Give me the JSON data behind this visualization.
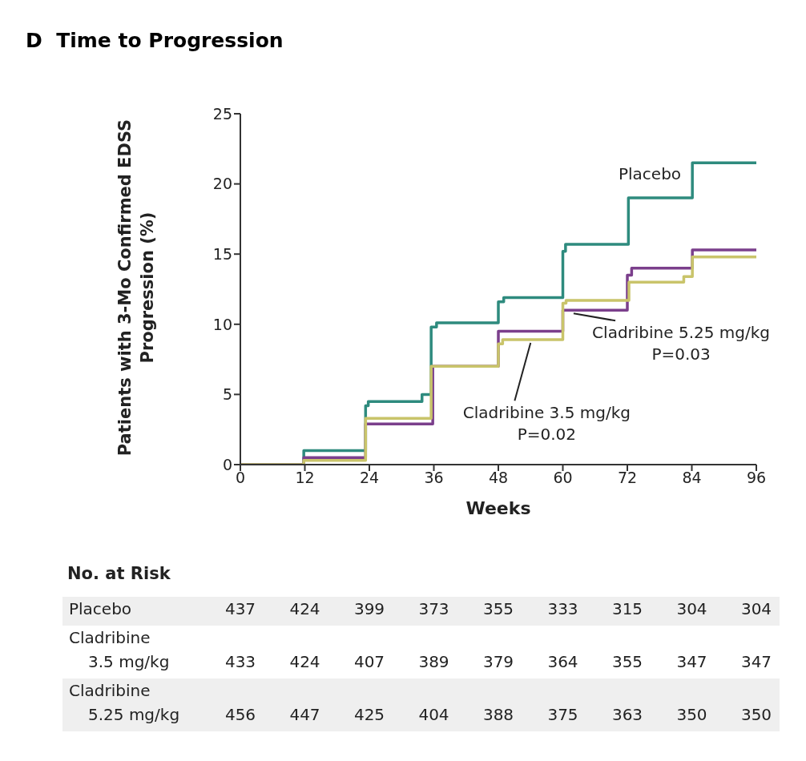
{
  "chart_data": {
    "type": "step",
    "title": "D  Time to Progression",
    "xlabel": "Weeks",
    "ylabel": "Patients with 3-Mo Confirmed EDSS Progression (%)",
    "xlim": [
      0,
      96
    ],
    "xticks": [
      0,
      12,
      24,
      36,
      48,
      60,
      72,
      84,
      96
    ],
    "ylim": [
      0,
      25
    ],
    "yticks": [
      0,
      5,
      10,
      15,
      20,
      25
    ],
    "grid": false,
    "legend": false,
    "marker": "none",
    "line_style": "solid",
    "series": [
      {
        "name": "Placebo",
        "color": "#2e8b7e",
        "x": [
          0,
          11.8,
          23.3,
          23.8,
          33.8,
          35.5,
          36.5,
          48,
          49,
          60,
          60.5,
          72.2,
          84.1,
          96
        ],
        "values": [
          0,
          1.0,
          4.2,
          4.5,
          5.0,
          9.8,
          10.1,
          11.6,
          11.9,
          15.2,
          15.7,
          19.0,
          21.5,
          21.5
        ]
      },
      {
        "name": "Cladribine 5.25 mg/kg",
        "color": "#7b3f8c",
        "x": [
          0,
          11.8,
          23.3,
          35.8,
          48,
          60,
          72,
          72.8,
          84.1,
          96
        ],
        "values": [
          0,
          0.5,
          2.9,
          7.0,
          9.5,
          11.0,
          13.5,
          14.0,
          15.3,
          15.3
        ]
      },
      {
        "name": "Cladribine 3.5 mg/kg",
        "color": "#c9c46a",
        "x": [
          0,
          11.8,
          23.3,
          35.5,
          48,
          48.8,
          60,
          60.6,
          72.3,
          82.5,
          84.1,
          96
        ],
        "values": [
          0,
          0.3,
          3.3,
          7.0,
          8.6,
          8.9,
          11.5,
          11.7,
          13.0,
          13.4,
          14.8,
          14.8
        ]
      }
    ],
    "annotations": [
      "P=0.03",
      "P=0.02",
      "No. at Risk",
      "Placebo",
      "437",
      "424",
      "399",
      "373",
      "355",
      "333",
      "315",
      "304",
      "304",
      "Cladribine\n3.5 mg/kg",
      "433",
      "424",
      "407",
      "389",
      "379",
      "364",
      "355",
      "347",
      "347",
      "Cladribine\n5.25 mg/kg",
      "456",
      "447",
      "425",
      "404",
      "388",
      "375",
      "363",
      "350",
      "350"
    ]
  }
}
